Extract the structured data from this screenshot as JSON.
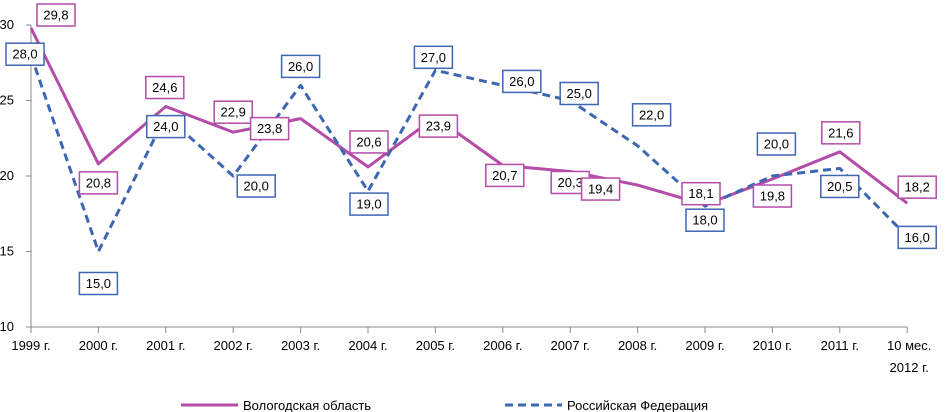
{
  "chart_data": {
    "type": "line",
    "title": "",
    "xlabel": "",
    "ylabel": "",
    "ylim": [
      10,
      30
    ],
    "yticks": [
      10,
      15,
      20,
      25,
      30
    ],
    "grid": false,
    "legend_position": "bottom",
    "categories": [
      "1999 г.",
      "2000 г.",
      "2001 г.",
      "2002 г.",
      "2003 г.",
      "2004 г.",
      "2005 г.",
      "2006 г.",
      "2007 г.",
      "2008 г.",
      "2009 г.",
      "2010 г.",
      "2011 г.",
      "10 мес. 2012 г."
    ],
    "series": [
      {
        "name": "Вологодская область",
        "color": "#b44ca8",
        "style": "solid",
        "values": [
          29.8,
          20.8,
          24.6,
          22.9,
          23.8,
          20.6,
          23.9,
          20.7,
          20.3,
          19.4,
          18.1,
          19.8,
          21.6,
          18.2
        ],
        "labels": [
          "29,8",
          "20,8",
          "24,6",
          "22,9",
          "23,8",
          "20,6",
          "23,9",
          "20,7",
          "20,3",
          "19,4",
          "18,1",
          "19,8",
          "21,6",
          "18,2"
        ]
      },
      {
        "name": "Российская Федерация",
        "color": "#3d67b1",
        "style": "dashed",
        "values": [
          28.0,
          15.0,
          24.0,
          20.0,
          26.0,
          19.0,
          27.0,
          26.0,
          25.0,
          22.0,
          18.0,
          20.0,
          20.5,
          16.0
        ],
        "labels": [
          "28,0",
          "15,0",
          "24,0",
          "20,0",
          "26,0",
          "19,0",
          "27,0",
          "26,0",
          "25,0",
          "22,0",
          "18,0",
          "20,0",
          "20,5",
          "16,0"
        ]
      }
    ]
  }
}
